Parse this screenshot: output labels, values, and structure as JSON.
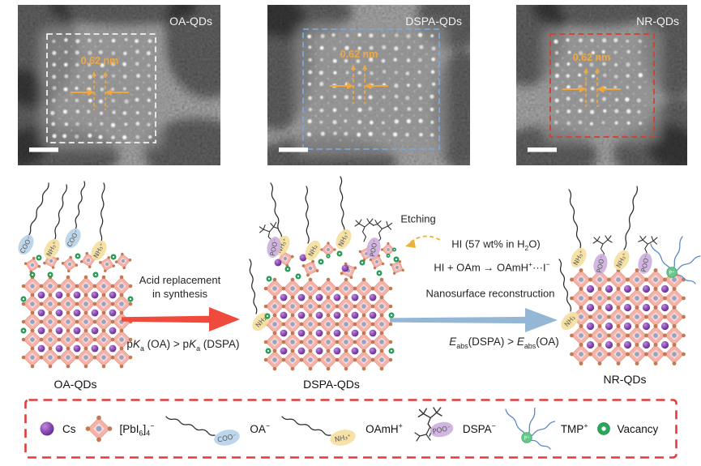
{
  "figure": {
    "tem_panels": [
      {
        "label": "OA-QDs",
        "measurement": "0.62 nm",
        "box_color": "#f2f2f2"
      },
      {
        "label": "DSPA-QDs",
        "measurement": "0.62 nm",
        "box_color": "#7ba6d9"
      },
      {
        "label": "NR-QDs",
        "measurement": "0.62 nm",
        "box_color": "#d2402a"
      }
    ],
    "schematic": {
      "stages": [
        {
          "label": "OA-QDs"
        },
        {
          "label": "DSPA-QDs"
        },
        {
          "label": "NR-QDs"
        }
      ],
      "transition1": {
        "caption_html": "Acid replacement<br>in synthesis",
        "condition_html": "p<i>K</i><sub>a</sub> (OA) > p<i>K</i><sub>a</sub> (DSPA)",
        "arrow_color": "#ef4a3c"
      },
      "transition2": {
        "etching_label": "Etching",
        "reagent_html": "HI (57 wt% in H<sub>2</sub>O)",
        "reaction_html": "HI + OAm → OAmH<sup>+</sup>···I<sup>−</sup>",
        "caption_html": "Nanosurface reconstruction",
        "condition_html": "<i>E</i><sub>abs</sub>(DSPA) > <i>E</i><sub>abs</sub>(OA)",
        "arrow_color": "#93b7d4",
        "etch_arrow_color": "#e8b23c"
      },
      "ligand_labels": {
        "coo": "COO⁻",
        "nh3": "NH₃⁺",
        "nh2": "NH₂",
        "poo": "POO⁻",
        "p": "P⁺"
      }
    },
    "legend": {
      "border_color": "#e23c3c",
      "items": [
        {
          "name": "cs",
          "label_html": "Cs"
        },
        {
          "name": "pbi6",
          "label_html": "[PbI<sub>6</sub>]<sub>4</sub><sup>−</sup>"
        },
        {
          "name": "oa",
          "icon_text": "COO⁻",
          "label_html": "OA<sup>−</sup>"
        },
        {
          "name": "oamh",
          "icon_text": "NH₃⁺",
          "label_html": "OAmH<sup>+</sup>"
        },
        {
          "name": "dspa",
          "icon_text": "POO⁻",
          "label_html": "DSPA<sup>−</sup>"
        },
        {
          "name": "tmp",
          "icon_text": "P⁺",
          "label_html": "TMP<sup>+</sup>"
        },
        {
          "name": "vacancy",
          "label_html": "Vacancy"
        }
      ]
    },
    "colors": {
      "octahedron_fill": "#f5b2a9",
      "octahedron_edge": "#e2968b",
      "iodine_dot": "#c17a52",
      "pb_center": "#94a3c6",
      "cs_purple": "#7a3aa4",
      "vacancy_green": "#2aa65c",
      "coo_ellipse": "#b9d4ea",
      "nh_ellipse": "#f6dfa2",
      "poo_ellipse": "#cdb2de",
      "tmp_green": "#66c98c",
      "tmp_chain_blue": "#5b87c5",
      "annotation_orange": "#f0a73e"
    }
  }
}
